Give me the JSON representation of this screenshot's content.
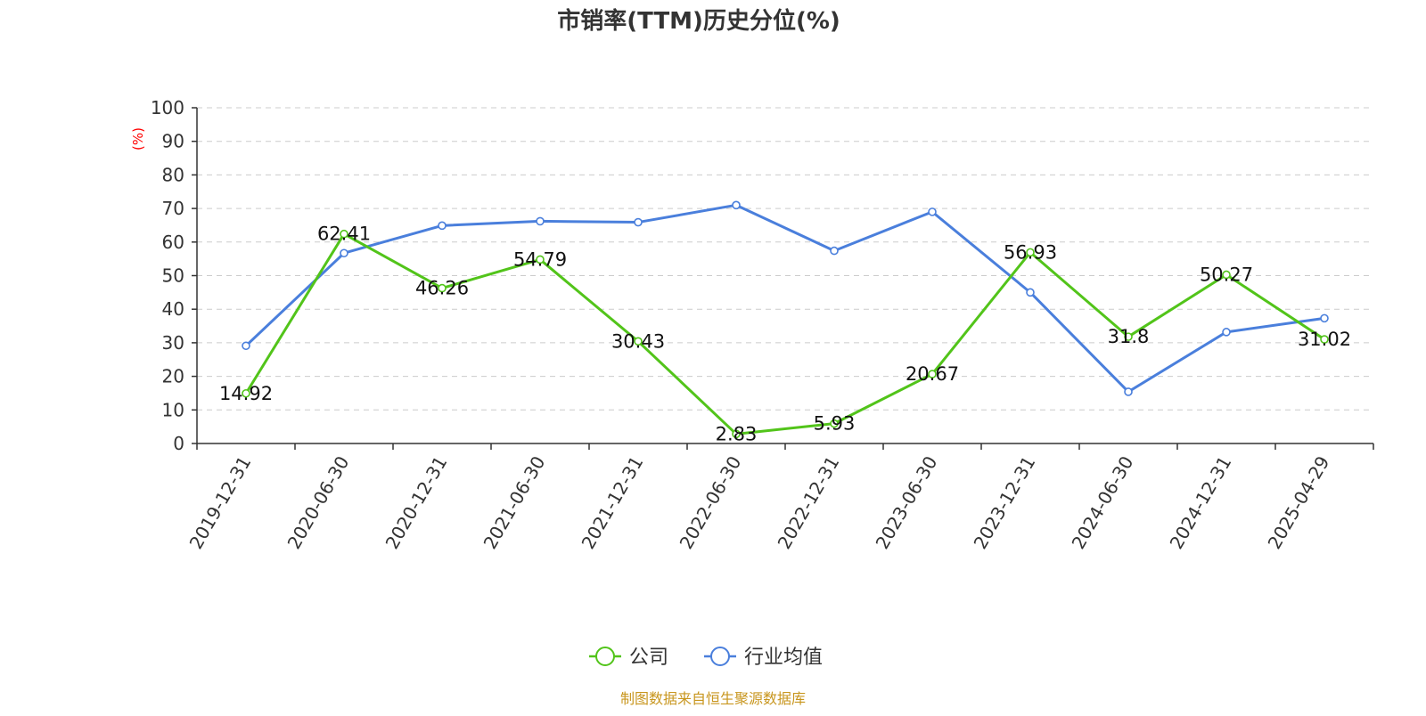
{
  "chart_data": {
    "type": "line",
    "title": "市销率(TTM)历史分位(%)",
    "ylabel": "(%)",
    "ylim": [
      0,
      100
    ],
    "yticks": [
      0,
      10,
      20,
      30,
      40,
      50,
      60,
      70,
      80,
      90,
      100
    ],
    "categories": [
      "2019-12-31",
      "2020-06-30",
      "2020-12-31",
      "2021-06-30",
      "2021-12-31",
      "2022-06-30",
      "2022-12-31",
      "2023-06-30",
      "2023-12-31",
      "2024-06-30",
      "2024-12-31",
      "2025-04-29"
    ],
    "grid": true,
    "legend_position": "bottom",
    "series": [
      {
        "name": "公司",
        "color": "#52c41a",
        "values": [
          14.92,
          62.41,
          46.26,
          54.79,
          30.43,
          2.83,
          5.93,
          20.67,
          56.93,
          31.8,
          50.27,
          31.02
        ],
        "labels": [
          "14.92",
          "62.41",
          "46.26",
          "54.79",
          "30.43",
          "2.83",
          "5.93",
          "20.67",
          "56.93",
          "31.8",
          "50.27",
          "31.02"
        ]
      },
      {
        "name": "行业均值",
        "color": "#4a7fdc",
        "values": [
          29.1,
          56.7,
          64.9,
          66.2,
          65.9,
          71.0,
          57.4,
          69.0,
          45.0,
          15.4,
          33.2,
          37.3
        ]
      }
    ]
  },
  "source_text": "制图数据来自恒生聚源数据库"
}
